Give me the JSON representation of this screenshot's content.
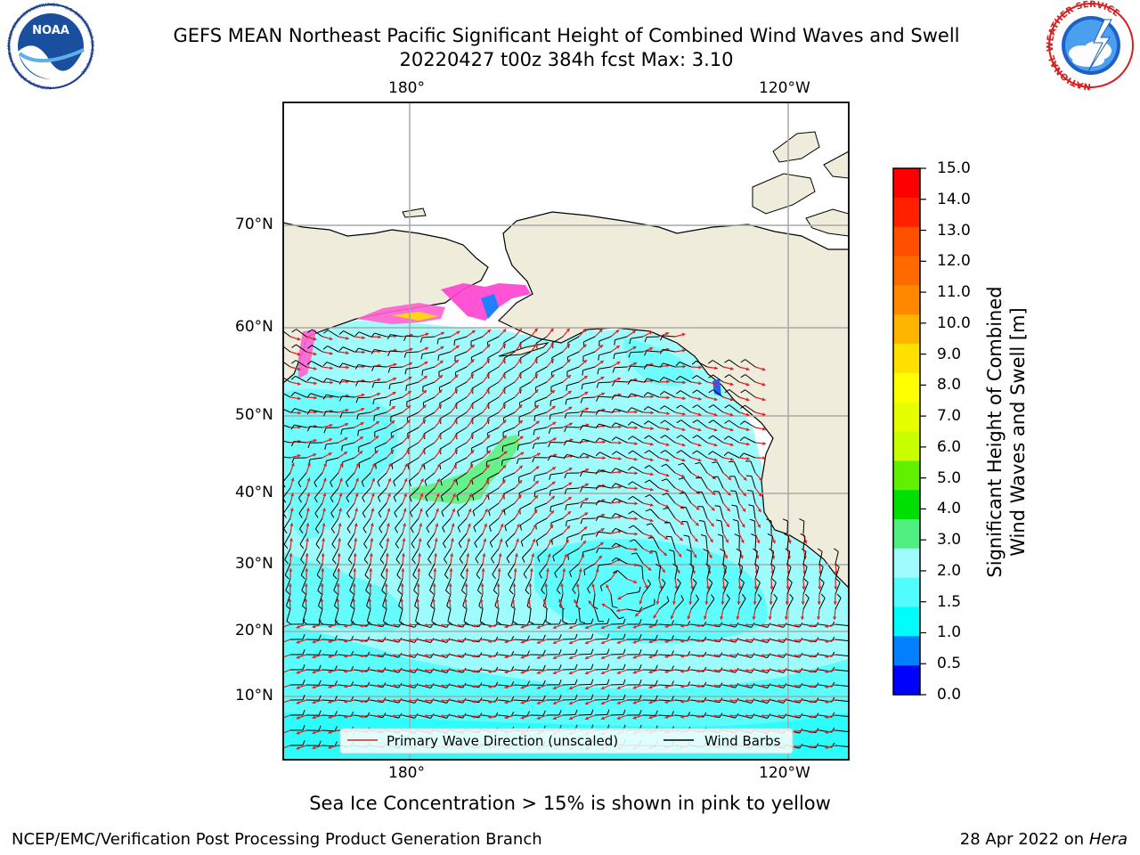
{
  "header": {
    "title_line1": "GEFS MEAN Northeast Pacific Significant Height of Combined Wind Waves and Swell",
    "title_line2": "20220427 t00z 384h fcst   Max: 3.10",
    "noaa_logo_text": "NOAA",
    "noaa_ring_text": "NATIONAL OCEANIC AND ATMOSPHERIC ADMINISTRATION • U.S. DEPARTMENT OF COMMERCE",
    "nws_ring_text": "NATIONAL WEATHER SERVICE"
  },
  "map": {
    "lon_ticks_top": [
      "180°",
      "120°W"
    ],
    "lon_ticks_bottom": [
      "180°",
      "120°W"
    ],
    "lat_ticks": [
      "70°N",
      "60°N",
      "50°N",
      "40°N",
      "30°N",
      "20°N",
      "10°N"
    ],
    "legend": {
      "wave_direction": "Primary Wave Direction (unscaled)",
      "wind_barbs": "Wind Barbs"
    },
    "colors": {
      "land": "#efecdb",
      "ocean_base": "#9ffcfc",
      "ocean_mid": "#4ffcfc",
      "wave_max": "#60f080",
      "arrow": "#e02020",
      "barb": "#000000"
    }
  },
  "colorbar": {
    "title_line1": "Significant Height of Combined",
    "title_line2": "Wind Waves and Swell [m]",
    "labels": [
      "15.0",
      "14.0",
      "13.0",
      "12.0",
      "11.0",
      "10.0",
      "9.0",
      "8.0",
      "7.0",
      "6.0",
      "5.0",
      "4.0",
      "3.0",
      "2.0",
      "1.5",
      "1.0",
      "0.5",
      "0.0"
    ],
    "colors_top_to_bottom": [
      "#ff0000",
      "#ff2000",
      "#ff5000",
      "#ff6a00",
      "#ff8800",
      "#ffb400",
      "#ffe000",
      "#ffff00",
      "#e6ff00",
      "#c8ff00",
      "#60f000",
      "#00e000",
      "#50f080",
      "#a0fcfc",
      "#50fcfc",
      "#00fcfc",
      "#0080ff",
      "#0000ff"
    ]
  },
  "footer": {
    "note": "Sea Ice Concentration > 15% is shown in pink to yellow",
    "org": "NCEP/EMC/Verification Post Processing Product Generation Branch",
    "date": "28 Apr 2022 on ",
    "host": "Hera"
  }
}
